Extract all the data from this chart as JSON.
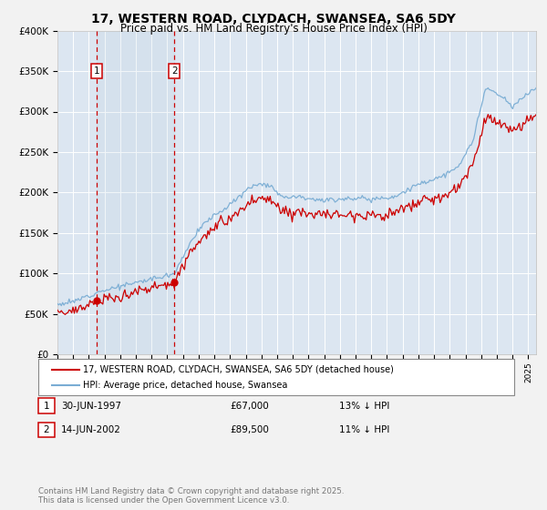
{
  "title": "17, WESTERN ROAD, CLYDACH, SWANSEA, SA6 5DY",
  "subtitle": "Price paid vs. HM Land Registry's House Price Index (HPI)",
  "legend_line1": "17, WESTERN ROAD, CLYDACH, SWANSEA, SA6 5DY (detached house)",
  "legend_line2": "HPI: Average price, detached house, Swansea",
  "footer": "Contains HM Land Registry data © Crown copyright and database right 2025.\nThis data is licensed under the Open Government Licence v3.0.",
  "transactions": [
    {
      "num": 1,
      "date": "30-JUN-1997",
      "price": "£67,000",
      "hpi": "13% ↓ HPI"
    },
    {
      "num": 2,
      "date": "14-JUN-2002",
      "price": "£89,500",
      "hpi": "11% ↓ HPI"
    }
  ],
  "vline_years": [
    1997.5,
    2002.45
  ],
  "sale_points_x": [
    1997.5,
    2002.45
  ],
  "sale_points_y": [
    67000,
    89500
  ],
  "ylim": [
    0,
    400000
  ],
  "xlim_start": 1995.0,
  "xlim_end": 2025.5,
  "price_line_color": "#cc0000",
  "hpi_line_color": "#7aadd4",
  "vline_color": "#cc0000",
  "background_color": "#dce6f1",
  "grid_color": "#ffffff",
  "sale_marker_color": "#cc0000",
  "marker_box_color": "#cc0000",
  "fig_bg_color": "#f0f0f0"
}
